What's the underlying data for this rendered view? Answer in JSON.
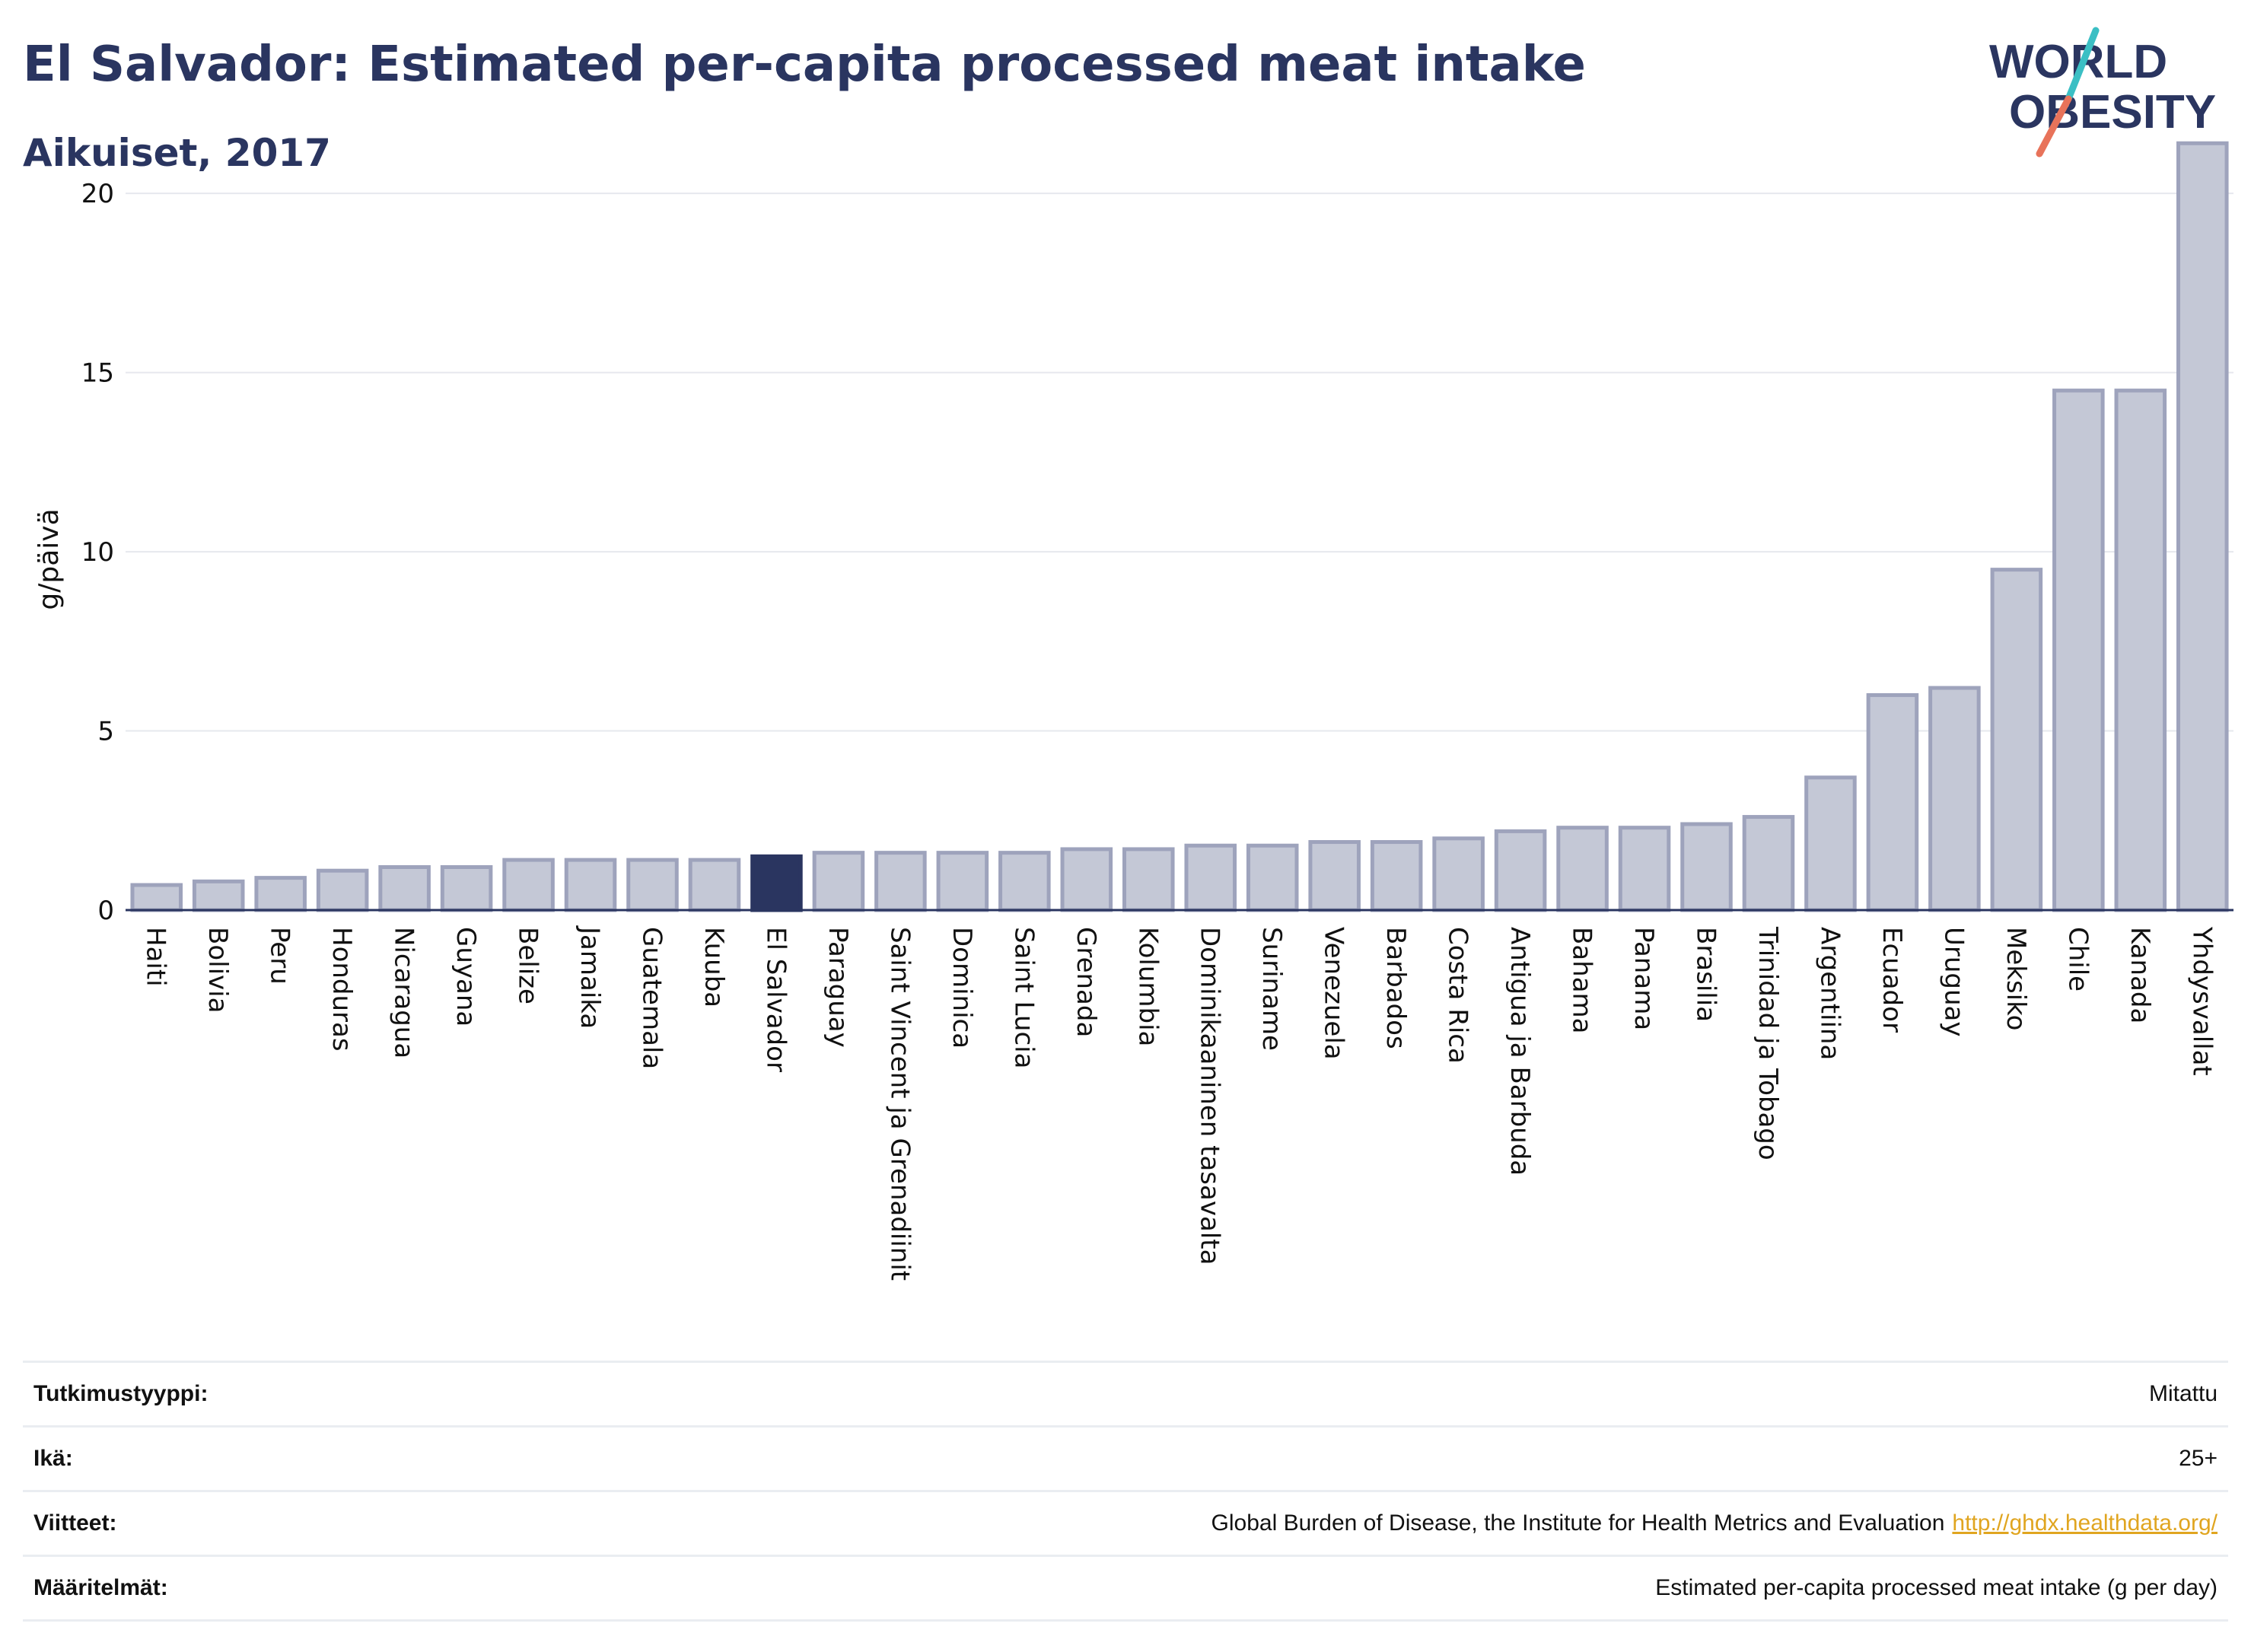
{
  "title": "El Salvador: Estimated per-capita processed meat intake",
  "subtitle": "Aikuiset, 2017",
  "logo": {
    "line1": "WORLD",
    "line2": "OBESITY"
  },
  "colors": {
    "bar": "#c4c8d6",
    "bar_stroke": "#9ea3bc",
    "highlight": "#2a3560",
    "grid": "#e6e8ee",
    "axis_text": "#111111",
    "logo_blue": "#2a3560",
    "logo_teal": "#3bbfc4",
    "logo_coral": "#e8735a"
  },
  "chart_data": {
    "type": "bar",
    "ylabel": "g/päivä",
    "ylim": [
      0,
      22
    ],
    "yticks": [
      0,
      5,
      10,
      15,
      20
    ],
    "grid": true,
    "highlight": "El Salvador",
    "categories": [
      "Haiti",
      "Bolivia",
      "Peru",
      "Honduras",
      "Nicaragua",
      "Guyana",
      "Belize",
      "Jamaika",
      "Guatemala",
      "Kuuba",
      "El Salvador",
      "Paraguay",
      "Saint Vincent ja Grenadiinit",
      "Dominica",
      "Saint Lucia",
      "Grenada",
      "Kolumbia",
      "Dominikaaninen tasavalta",
      "Suriname",
      "Venezuela",
      "Barbados",
      "Costa Rica",
      "Antigua ja Barbuda",
      "Bahama",
      "Panama",
      "Brasilia",
      "Trinidad ja Tobago",
      "Argentiina",
      "Ecuador",
      "Uruguay",
      "Meksiko",
      "Chile",
      "Kanada",
      "Yhdysvallat"
    ],
    "values": [
      0.7,
      0.8,
      0.9,
      1.1,
      1.2,
      1.2,
      1.4,
      1.4,
      1.4,
      1.4,
      1.5,
      1.6,
      1.6,
      1.6,
      1.6,
      1.7,
      1.7,
      1.8,
      1.8,
      1.9,
      1.9,
      2.0,
      2.2,
      2.3,
      2.3,
      2.4,
      2.6,
      3.7,
      6.0,
      6.2,
      9.5,
      14.5,
      14.5,
      21.4
    ]
  },
  "info": {
    "rows": [
      {
        "label": "Tutkimustyyppi:",
        "value": "Mitattu",
        "link": ""
      },
      {
        "label": "Ikä:",
        "value": "25+",
        "link": ""
      },
      {
        "label": "Viitteet:",
        "value": "Global Burden of Disease, the Institute for Health Metrics and Evaluation",
        "link": "http://ghdx.healthdata.org/"
      },
      {
        "label": "Määritelmät:",
        "value": "Estimated per-capita processed meat intake (g per day)",
        "link": ""
      }
    ]
  }
}
